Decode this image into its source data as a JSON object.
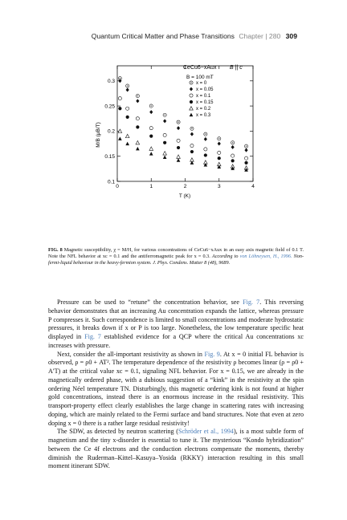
{
  "header": {
    "title": "Quantum Critical Matter and Phase Transitions",
    "chapter": "Chapter | 280",
    "page_number": "309"
  },
  "figure": {
    "inset_title": "CeCu6−xAux",
    "field_dir": "B || c",
    "field_value": "B = 100 mT",
    "ylabel": "M/B (μB/T)",
    "xlabel": "T (K)"
  },
  "chart_data": {
    "type": "scatter",
    "title": "",
    "xlabel": "T (K)",
    "ylabel": "M/B (μB/T)",
    "xlim": [
      0,
      4
    ],
    "ylim": [
      0.1,
      0.33
    ],
    "x_ticks": [
      "0",
      "1",
      "2",
      "3",
      "4"
    ],
    "y_ticks": [
      "0.1",
      "0.15",
      "0.2",
      "0.25",
      "0.3"
    ],
    "legend_position": "top-right",
    "series": [
      {
        "name": "x = 0",
        "marker": "open-circle-dot",
        "x": [
          0.08,
          0.3,
          0.6,
          1.0,
          1.4,
          1.8,
          2.2,
          2.6,
          3.0,
          3.4,
          3.8
        ],
        "y": [
          0.305,
          0.29,
          0.27,
          0.25,
          0.232,
          0.218,
          0.205,
          0.194,
          0.185,
          0.177,
          0.17
        ]
      },
      {
        "name": "x = 0.05",
        "marker": "filled-diamond",
        "x": [
          0.08,
          0.3,
          0.6,
          1.0,
          1.4,
          1.8,
          2.2,
          2.6,
          3.0,
          3.4,
          3.8
        ],
        "y": [
          0.3,
          0.282,
          0.26,
          0.238,
          0.22,
          0.206,
          0.194,
          0.184,
          0.175,
          0.168,
          0.162
        ]
      },
      {
        "name": "x = 0.1",
        "marker": "open-circle",
        "x": [
          0.08,
          0.3,
          0.6,
          1.0,
          1.4,
          1.8,
          2.2,
          2.6,
          3.0,
          3.4,
          3.8
        ],
        "y": [
          0.265,
          0.245,
          0.225,
          0.206,
          0.192,
          0.181,
          0.171,
          0.164,
          0.157,
          0.151,
          0.146
        ]
      },
      {
        "name": "x = 0.15",
        "marker": "filled-circle",
        "x": [
          0.08,
          0.3,
          0.6,
          1.0,
          1.4,
          1.8,
          2.2,
          2.6,
          3.0,
          3.4,
          3.8
        ],
        "y": [
          0.245,
          0.228,
          0.208,
          0.19,
          0.177,
          0.167,
          0.159,
          0.152,
          0.146,
          0.141,
          0.137
        ]
      },
      {
        "name": "x = 0.2",
        "marker": "open-triangle",
        "x": [
          0.08,
          0.3,
          0.6,
          1.0,
          1.4,
          1.8,
          2.2,
          2.6,
          3.0,
          3.4,
          3.8
        ],
        "y": [
          0.2,
          0.19,
          0.177,
          0.165,
          0.156,
          0.149,
          0.143,
          0.138,
          0.134,
          0.13,
          0.127
        ]
      },
      {
        "name": "x = 0.3",
        "marker": "filled-triangle",
        "x": [
          0.08,
          0.3,
          0.6,
          1.0,
          1.4,
          1.8,
          2.2,
          2.6,
          3.0,
          3.4,
          3.8
        ],
        "y": [
          0.185,
          0.175,
          0.165,
          0.155,
          0.148,
          0.142,
          0.137,
          0.133,
          0.129,
          0.126,
          0.123
        ]
      }
    ]
  },
  "caption": {
    "label": "FIG. 8",
    "text1": "Magnetic susceptibility, χ = M/H, for various concentrations of CeCu6−xAux in an easy axis magnetic field of 0.1 T. Note the NFL behavior at xc = 0.1 and the antiferromagnetic peak for x = 0.3.",
    "text2": "According to",
    "cite": "von Löhneysen, H., 1996.",
    "text3": "Non-fermi-liquid behaviour in the heavy-fermion system. J. Phys. Condens. Matter 8 (48), 9689."
  },
  "body": {
    "p1_a": "Pressure can be used to “retune” the concentration behavior, see",
    "p1_ref1": "Fig. 7",
    "p1_b": ". This reversing behavior demonstrates that an increasing Au concentration expands the lattice, whereas pressure P compresses it. Such correspondence is limited to small concentrations and moderate hydrostatic pressures, it breaks down if x or P is too large. Nonetheless, the low temperature specific heat displayed in",
    "p1_ref2": "Fig. 7",
    "p1_c": "established evidence for a QCP where the critical Au concentrations xc increases with pressure.",
    "p2_a": "Next, consider the all-important resistivity as shown in",
    "p2_ref1": "Fig. 9",
    "p2_b": ". At x = 0 initial FL behavior is observed, ρ = ρ0 + AT². The temperature dependence of the resistivity ρ becomes linear (ρ = ρ0 + A′T) at the critical value xc = 0.1, signaling NFL behavior. For x = 0.15, we are already in the magnetically ordered phase, with a dubious suggestion of a “kink” in the resistivity at the spin ordering Néel temperature TN. Disturbingly, this magnetic ordering kink is not found at higher gold concentrations, instead there is an enormous increase in the residual resistivity. This transport-property effect clearly establishes the large change in scattering rates with increasing doping, which are mainly related to the Fermi surface and band structures. Note that even at zero doping x = 0 there is a rather large residual resistivity!",
    "p3_a": "The SDW, as detected by neutron scattering (",
    "p3_ref1": "Schröder et al., 1994",
    "p3_b": "), is a most subtle form of magnetism and the tiny x-disorder is essential to tune it. The mysterious “Kondo hybridization” between the Ce 4f electrons and the conduction electrons compensate the moments, thereby diminish the Ruderman–Kittel–Kasuya–Yosida (RKKY) interaction resulting in this small moment itinerant SDW."
  }
}
